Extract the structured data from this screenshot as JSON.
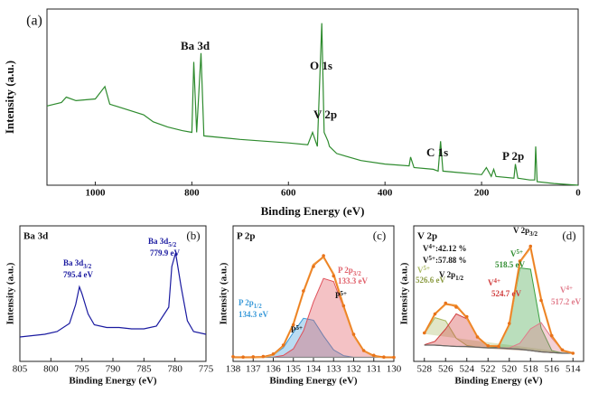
{
  "chart_data": [
    {
      "type": "line",
      "panel_label": "(a)",
      "x_label": "Binding Energy (eV)",
      "y_label": "Intensity (a.u.)",
      "xlim": [
        1100,
        0
      ],
      "xticks": [
        1000,
        800,
        600,
        400,
        200,
        0
      ],
      "ylim": [
        0,
        100
      ],
      "x": [
        1100,
        1070,
        1060,
        1040,
        1000,
        980,
        970,
        900,
        880,
        850,
        820,
        800,
        796,
        790,
        781,
        775,
        700,
        600,
        560,
        550,
        540,
        531,
        526,
        518,
        515,
        500,
        450,
        400,
        350,
        347,
        340,
        300,
        290,
        285,
        280,
        200,
        190,
        180,
        175,
        170,
        133,
        130,
        125,
        100,
        90,
        88,
        85,
        50,
        0
      ],
      "series": [
        {
          "color": "#2e8b2e",
          "style": "line",
          "values": [
            45,
            47,
            50,
            48,
            49,
            56,
            46,
            40,
            36,
            33,
            31,
            30,
            70,
            30,
            75,
            28,
            26,
            24,
            23,
            30,
            22,
            92,
            30,
            25,
            22,
            18,
            14,
            12,
            11,
            16,
            10,
            9,
            8,
            25,
            8,
            6,
            10,
            5,
            9,
            5,
            4,
            12,
            4,
            3,
            3,
            22,
            2,
            1,
            0
          ]
        }
      ],
      "annotations": [
        {
          "text": "Ba 3d",
          "color": "#111"
        },
        {
          "text": "O 1s",
          "color": "#111"
        },
        {
          "text": "V 2p",
          "color": "#111"
        },
        {
          "text": "C 1s",
          "color": "#111"
        },
        {
          "text": "P 2p",
          "color": "#111"
        }
      ]
    },
    {
      "type": "line",
      "title": "Ba 3d",
      "panel_label": "(b)",
      "x_label": "Binding Energy (eV)",
      "y_label": "Intensity (a.u.)",
      "xlim": [
        805,
        775
      ],
      "xticks": [
        805,
        800,
        795,
        790,
        785,
        780,
        775
      ],
      "ylim": [
        0,
        100
      ],
      "x": [
        805,
        803,
        801,
        799,
        797,
        796,
        795.4,
        795,
        794,
        793,
        791,
        789,
        787,
        785,
        783,
        781,
        780.5,
        779.9,
        779,
        778,
        777,
        775
      ],
      "series": [
        {
          "color": "#1a1aa0",
          "style": "line",
          "values": [
            18,
            19,
            20,
            22,
            28,
            42,
            55,
            50,
            35,
            27,
            25,
            25,
            24,
            24,
            26,
            40,
            70,
            80,
            55,
            30,
            22,
            20
          ]
        }
      ],
      "annotations": [
        {
          "text": "Ba 3d",
          "sub": "3/2",
          "color": "#1a1aa0"
        },
        {
          "text": "795.4 eV",
          "color": "#1a1aa0"
        },
        {
          "text": "Ba 3d",
          "sub": "5/2",
          "color": "#1a1aa0"
        },
        {
          "text": "779.9 eV",
          "color": "#1a1aa0"
        }
      ]
    },
    {
      "type": "line",
      "title": "P 2p",
      "panel_label": "(c)",
      "x_label": "Binding Energy (eV)",
      "y_label": "Intensity (a.u.)",
      "xlim": [
        138,
        130
      ],
      "xticks": [
        138,
        137,
        136,
        135,
        134,
        133,
        132,
        131,
        130
      ],
      "ylim": [
        0,
        100
      ],
      "x": [
        138,
        137.5,
        137,
        136.5,
        136,
        135.5,
        135,
        134.5,
        134,
        133.5,
        133,
        132.5,
        132,
        131.5,
        131,
        130.5,
        130
      ],
      "series": [
        {
          "color": "#3a9ad9",
          "style": "area",
          "values": [
            3,
            3,
            3,
            3.2,
            4.7,
            10.1,
            21.4,
            31.8,
            30.4,
            18.8,
            8.5,
            4.2,
            3,
            3,
            3,
            3,
            3
          ]
        },
        {
          "color": "#e0505a",
          "style": "area",
          "values": [
            3,
            3,
            3,
            3,
            3.2,
            4.4,
            9.3,
            22.5,
            43.9,
            61.2,
            58.9,
            39.4,
            19,
            7.8,
            4,
            3,
            3
          ]
        },
        {
          "color": "#888888",
          "style": "line",
          "values": [
            3,
            3,
            3,
            3,
            3,
            3,
            3,
            3,
            3,
            3,
            3,
            3,
            3,
            3,
            3,
            3,
            3
          ]
        },
        {
          "color": "#f39a3c",
          "style": "line",
          "values": [
            3,
            3,
            3,
            3.2,
            4.9,
            11.5,
            27.7,
            51.3,
            71.3,
            77,
            64.4,
            40.6,
            19.2,
            7.8,
            4,
            3,
            3
          ]
        },
        {
          "color": "#e8731a",
          "style": "points",
          "values": [
            3.5,
            3.2,
            3.4,
            3.6,
            5.5,
            12,
            27,
            52,
            70,
            78,
            63,
            41,
            20,
            8,
            4.5,
            3.2,
            3
          ]
        }
      ],
      "annotations": [
        {
          "text": "P 2p",
          "sub": "3/2",
          "color": "#e0606a"
        },
        {
          "text": "133.3 eV",
          "color": "#e0606a"
        },
        {
          "text": "P 2p",
          "sub": "1/2",
          "color": "#3a9ad9"
        },
        {
          "text": "134.3 eV",
          "color": "#3a9ad9"
        },
        {
          "text": "P",
          "sup": "5+",
          "color": "#111"
        },
        {
          "text": "P",
          "sup": "5+",
          "color": "#111"
        }
      ]
    },
    {
      "type": "line",
      "title": "V 2p",
      "panel_label": "(d)",
      "x_label": "Binding Energy (eV)",
      "y_label": "Intensity (a.u.)",
      "xlim": [
        529,
        513
      ],
      "xticks": [
        528,
        526,
        524,
        522,
        520,
        518,
        516,
        514
      ],
      "ylim": [
        0,
        100
      ],
      "x": [
        528,
        527,
        526,
        525,
        524,
        523,
        522,
        521,
        520,
        519,
        518,
        517,
        516,
        515,
        514
      ],
      "series": [
        {
          "color": "#a8b860",
          "style": "area",
          "values": [
            20.3,
            32.3,
            29.9,
            17.1,
            11.7,
            10.5,
            10,
            10,
            9.5,
            9,
            8,
            7,
            6.5,
            6,
            6
          ]
        },
        {
          "color": "#d03a3a",
          "style": "area",
          "values": [
            12.3,
            14.8,
            23.9,
            35.1,
            31.4,
            18.1,
            11.2,
            10,
            9.5,
            9,
            8,
            7,
            6.5,
            6,
            6
          ]
        },
        {
          "color": "#3aa040",
          "style": "area",
          "values": [
            12,
            12,
            11.5,
            11,
            11,
            10.5,
            10,
            11.5,
            26.9,
            69,
            68,
            24.4,
            8,
            6,
            6
          ]
        },
        {
          "color": "#e07a8a",
          "style": "area",
          "values": [
            12,
            12,
            11.5,
            11,
            11,
            10.5,
            10,
            10,
            9.9,
            13.4,
            24,
            28.6,
            17.2,
            8,
            6.1
          ]
        },
        {
          "color": "#666666",
          "style": "line",
          "values": [
            12,
            12,
            11.5,
            11,
            11,
            10.5,
            10,
            10,
            9.5,
            9,
            8,
            7,
            6.5,
            6,
            6
          ]
        },
        {
          "color": "#f39a3c",
          "style": "line",
          "values": [
            20.6,
            35.1,
            42.3,
            41.2,
            32.1,
            18.1,
            11.2,
            11.5,
            27.3,
            73.4,
            84,
            46,
            18.7,
            8,
            6.1
          ]
        },
        {
          "color": "#e8731a",
          "style": "points",
          "values": [
            21,
            35,
            43,
            40,
            33,
            18,
            11.5,
            11,
            28,
            74,
            85,
            45,
            19,
            8.5,
            6
          ]
        }
      ],
      "annotations": [
        {
          "text": "V",
          "sup": "4+",
          "after": ":42.12 %",
          "color": "#111"
        },
        {
          "text": "V",
          "sup": "5+",
          "after": ":57.88 %",
          "color": "#111"
        },
        {
          "text": "V",
          "sup": "5+",
          "color": "#a8b860"
        },
        {
          "text": "526.6 eV",
          "color": "#8a9a40"
        },
        {
          "text": "V 2p",
          "sub": "1/2",
          "color": "#111"
        },
        {
          "text": "V",
          "sup": "4+",
          "color": "#d03a3a"
        },
        {
          "text": "524.7 eV",
          "color": "#d03a3a"
        },
        {
          "text": "V 2p",
          "sub": "3/2",
          "color": "#111"
        },
        {
          "text": "V",
          "sup": "5+",
          "color": "#2e8b2e"
        },
        {
          "text": "518.5 eV",
          "color": "#2e8b2e"
        },
        {
          "text": "V",
          "sup": "4+",
          "color": "#e07a8a"
        },
        {
          "text": "517.2 eV",
          "color": "#e07a8a"
        }
      ]
    }
  ]
}
